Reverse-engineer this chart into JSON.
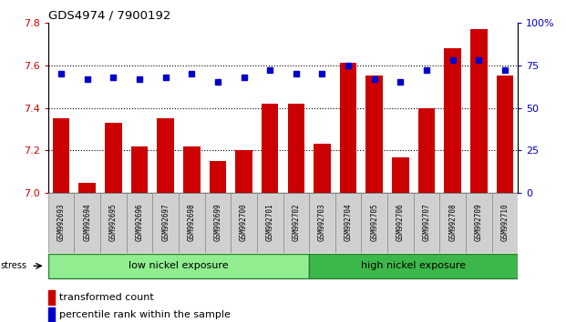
{
  "title": "GDS4974 / 7900192",
  "samples": [
    "GSM992693",
    "GSM992694",
    "GSM992695",
    "GSM992696",
    "GSM992697",
    "GSM992698",
    "GSM992699",
    "GSM992700",
    "GSM992701",
    "GSM992702",
    "GSM992703",
    "GSM992704",
    "GSM992705",
    "GSM992706",
    "GSM992707",
    "GSM992708",
    "GSM992709",
    "GSM992710"
  ],
  "bar_values": [
    7.35,
    7.05,
    7.33,
    7.22,
    7.35,
    7.22,
    7.15,
    7.2,
    7.42,
    7.42,
    7.23,
    7.61,
    7.55,
    7.17,
    7.4,
    7.68,
    7.77,
    7.55
  ],
  "dot_values": [
    70,
    67,
    68,
    67,
    68,
    70,
    65,
    68,
    72,
    70,
    70,
    75,
    67,
    65,
    72,
    78,
    78,
    72
  ],
  "bar_color": "#cc0000",
  "dot_color": "#0000cc",
  "ymin": 7.0,
  "ymax": 7.8,
  "y2min": 0,
  "y2max": 100,
  "yticks": [
    7.0,
    7.2,
    7.4,
    7.6,
    7.8
  ],
  "y2ticks": [
    0,
    25,
    50,
    75,
    100
  ],
  "grid_values": [
    7.2,
    7.4,
    7.6
  ],
  "low_nickel_count": 10,
  "high_nickel_count": 8,
  "low_nickel_label": "low nickel exposure",
  "high_nickel_label": "high nickel exposure",
  "stress_label": "stress",
  "legend_bar_label": "transformed count",
  "legend_dot_label": "percentile rank within the sample",
  "bg_color": "#ffffff",
  "bar_color_hex": "#cc0000",
  "dot_color_hex": "#0000cc",
  "tick_color_left": "#cc0000",
  "tick_color_right": "#0000cc",
  "low_nickel_bg": "#90ee90",
  "high_nickel_bg": "#3cb84a",
  "label_box_bg": "#d0d0d0"
}
